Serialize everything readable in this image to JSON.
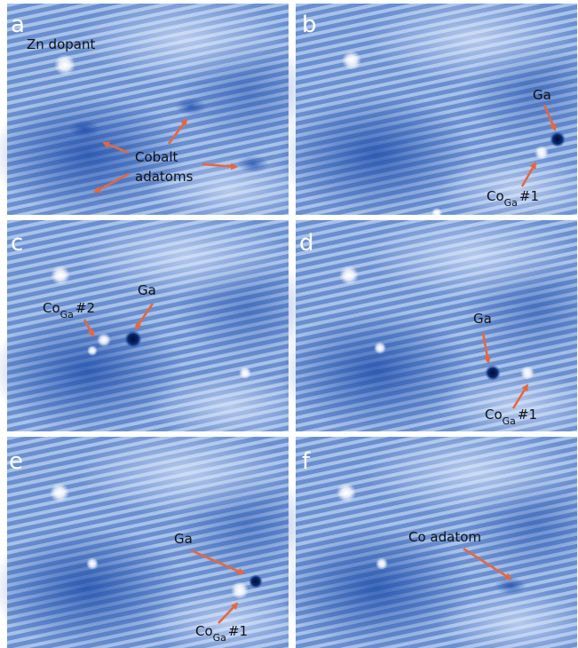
{
  "panels": [
    {
      "letter": "a",
      "labels": [
        {
          "text": "Zn dopant"
        },
        {
          "text": "Cobalt"
        },
        {
          "text": "adatoms"
        }
      ]
    },
    {
      "letter": "b",
      "labels": [
        {
          "text": "Ga"
        },
        {
          "main": "Co",
          "sub": "Ga",
          "suffix": "#1"
        }
      ]
    },
    {
      "letter": "c",
      "labels": [
        {
          "main": "Co",
          "sub": "Ga",
          "suffix": "#2"
        },
        {
          "text": "Ga"
        }
      ]
    },
    {
      "letter": "d",
      "labels": [
        {
          "text": "Ga"
        },
        {
          "main": "Co",
          "sub": "Ga",
          "suffix": "#1"
        }
      ]
    },
    {
      "letter": "e",
      "labels": [
        {
          "text": "Ga"
        },
        {
          "main": "Co",
          "sub": "Ga",
          "suffix": "#1"
        }
      ]
    },
    {
      "letter": "f",
      "labels": [
        {
          "text": "Co adatom"
        }
      ]
    }
  ]
}
